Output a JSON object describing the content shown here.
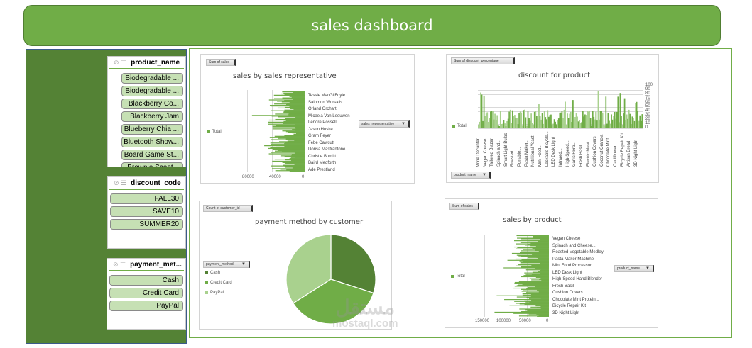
{
  "header": {
    "title": "sales dashboard"
  },
  "slicers": {
    "product_name": {
      "title": "product_name",
      "items": [
        "Biodegradable ...",
        "Biodegradable ...",
        "Blackberry Co...",
        "Blackberry Jam",
        "Blueberry Chia ...",
        "Bluetooth Show...",
        "Board Game St...",
        "Brownie Scoot..."
      ]
    },
    "discount_code": {
      "title": "discount_code",
      "items": [
        "FALL30",
        "SAVE10",
        "SUMMER20"
      ]
    },
    "payment_method": {
      "title": "payment_met...",
      "items": [
        "Cash",
        "Credit Card",
        "PayPal"
      ]
    }
  },
  "charts": {
    "sales_rep": {
      "value_button": "Sum of sales",
      "title": "sales by sales representative",
      "legend": "Total",
      "axis_button": "sales_representative",
      "labels": [
        "Tessie MacGilFoyle",
        "Salomon Worsalls",
        "Orland Orchart",
        "Micaela Van Leeuwen",
        "Lenore Possell",
        "Jasun Huske",
        "Gram Feyer",
        "Febe Cawcutt",
        "Dorisa Mastrantone",
        "Christie Bumitt",
        "Baird Medforth",
        "Ade Prestland"
      ],
      "ticks": [
        "80000",
        "40000",
        "0"
      ]
    },
    "discount": {
      "value_button": "Sum of discount_percentage",
      "title": "discount for product",
      "legend": "Total",
      "axis_button": "product_name",
      "labels": [
        "Wine Decanter",
        "Vegan Cheese",
        "Tailored Blazer",
        "Spinach and...",
        "Smart Light Bulbs",
        "Roasted...",
        "Portable...",
        "Pasta Maker...",
        "Nutritional Yeast",
        "Mini Food...",
        "Lockable Bicycle...",
        "LED Desk Light",
        "Infrared...",
        "High-Speed...",
        "Garlic Herb...",
        "Fresh Basil",
        "Electric Meat...",
        "Cushion Covers",
        "Coconut Granola",
        "Chocolate Mint...",
        "Cauliflower...",
        "Bicycle Repair Kit",
        "Artisan Bread",
        "3D Night Light"
      ],
      "ticks": [
        "100",
        "90",
        "80",
        "70",
        "60",
        "50",
        "40",
        "30",
        "20",
        "10",
        "0"
      ]
    },
    "payment": {
      "value_button": "Count of customer_id",
      "title": "payment method by customer",
      "legend_button": "payment_method",
      "legend": [
        "Cash",
        "Credit Card",
        "PayPal"
      ]
    },
    "product_sales": {
      "value_button": "Sum of sales",
      "title": "sales by product",
      "legend": "Total",
      "axis_button": "product_name",
      "labels": [
        "Vegan Cheese",
        "Spinach and Cheese...",
        "Roasted Vegetable Medley",
        "Pasta Maker Machine",
        "Mini Food Processor",
        "LED Desk Light",
        "High-Speed Hand Blender",
        "Fresh Basil",
        "Cushion Covers",
        "Chocolate Mint Protein...",
        "Bicycle Repair Kit",
        "3D Night Light"
      ],
      "ticks": [
        "150000",
        "100000",
        "50000",
        "0"
      ]
    }
  },
  "colors": {
    "accent": "#70ad47",
    "dark": "#548235",
    "light": "#a9d18e",
    "pale": "#c6e0b4"
  },
  "watermark": {
    "arabic": "مستقل",
    "latin": "mostaql.com"
  },
  "chart_data": [
    {
      "type": "bar",
      "orientation": "horizontal",
      "title": "sales by sales representative",
      "series": [
        {
          "name": "Total",
          "values": [
            15000,
            42000,
            30000,
            55000,
            38000,
            28000,
            60000,
            45000,
            35000,
            70000,
            50000,
            48000
          ]
        }
      ],
      "categories": [
        "Tessie MacGilFoyle",
        "Salomon Worsalls",
        "Orland Orchart",
        "Micaela Van Leeuwen",
        "Lenore Possell",
        "Jasun Huske",
        "Gram Feyer",
        "Febe Cawcutt",
        "Dorisa Mastrantone",
        "Christie Bumitt",
        "Baird Medforth",
        "Ade Prestland"
      ],
      "xlim": [
        0,
        90000
      ],
      "xticks": [
        80000,
        40000,
        0
      ],
      "legend_position": "left"
    },
    {
      "type": "bar",
      "title": "discount for product",
      "series": [
        {
          "name": "Total",
          "values": [
            40,
            60,
            45,
            50,
            30,
            90,
            45,
            50,
            40,
            35,
            45,
            80,
            40,
            50,
            45,
            40,
            60,
            78,
            40,
            45,
            45,
            60,
            48,
            50
          ]
        }
      ],
      "categories": [
        "Wine Decanter",
        "Vegan Cheese",
        "Tailored Blazer",
        "Spinach and...",
        "Smart Light Bulbs",
        "Roasted...",
        "Portable...",
        "Pasta Maker...",
        "Nutritional Yeast",
        "Mini Food...",
        "Lockable Bicycle...",
        "LED Desk Light",
        "Infrared...",
        "High-Speed...",
        "Garlic Herb...",
        "Fresh Basil",
        "Electric Meat...",
        "Cushion Covers",
        "Coconut Granola",
        "Chocolate Mint...",
        "Cauliflower...",
        "Bicycle Repair Kit",
        "Artisan Bread",
        "3D Night Light"
      ],
      "ylim": [
        0,
        100
      ],
      "yticks": [
        0,
        10,
        20,
        30,
        40,
        50,
        60,
        70,
        80,
        90,
        100
      ],
      "grid": true,
      "legend_position": "left"
    },
    {
      "type": "pie",
      "title": "payment method by customer",
      "categories": [
        "Cash",
        "Credit Card",
        "PayPal"
      ],
      "values": [
        30,
        36,
        34
      ],
      "colors": [
        "#548235",
        "#70ad47",
        "#a9d18e"
      ],
      "legend_position": "left"
    },
    {
      "type": "bar",
      "orientation": "horizontal",
      "title": "sales by product",
      "series": [
        {
          "name": "Total",
          "values": [
            120000,
            60000,
            50000,
            70000,
            45000,
            85000,
            90000,
            60000,
            110000,
            55000,
            80000,
            70000
          ]
        }
      ],
      "categories": [
        "Vegan Cheese",
        "Spinach and Cheese...",
        "Roasted Vegetable Medley",
        "Pasta Maker Machine",
        "Mini Food Processor",
        "LED Desk Light",
        "High-Speed Hand Blender",
        "Fresh Basil",
        "Cushion Covers",
        "Chocolate Mint Protein...",
        "Bicycle Repair Kit",
        "3D Night Light"
      ],
      "xlim": [
        0,
        150000
      ],
      "xticks": [
        150000,
        100000,
        50000,
        0
      ],
      "legend_position": "left"
    }
  ]
}
